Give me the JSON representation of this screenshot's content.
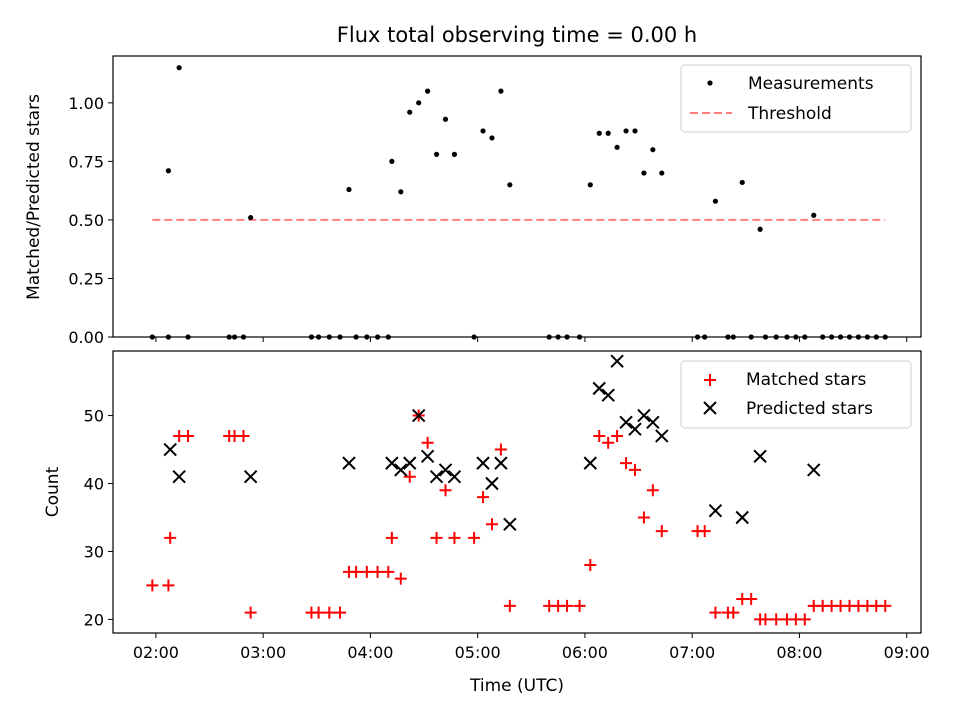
{
  "chart_data": [
    {
      "type": "scatter",
      "title": "Flux total observing time = 0.00 h",
      "ylabel": "Matched/Predicted stars",
      "xlim": [
        "01:36",
        "09:08"
      ],
      "ylim": [
        0,
        1.2
      ],
      "yticks": [
        "0.00",
        "0.25",
        "0.50",
        "0.75",
        "1.00"
      ],
      "legend_position": "top-right",
      "series": [
        {
          "name": "Measurements",
          "marker": "dot",
          "color": "#000000",
          "points": [
            [
              "01:58",
              0
            ],
            [
              "02:07",
              0
            ],
            [
              "02:07",
              0.71
            ],
            [
              "02:13",
              1.15
            ],
            [
              "02:18",
              0
            ],
            [
              "02:41",
              0
            ],
            [
              "02:44",
              0
            ],
            [
              "02:49",
              0
            ],
            [
              "02:53",
              0.51
            ],
            [
              "03:27",
              0
            ],
            [
              "03:31",
              0
            ],
            [
              "03:37",
              0
            ],
            [
              "03:43",
              0
            ],
            [
              "03:48",
              0.63
            ],
            [
              "03:52",
              0
            ],
            [
              "03:58",
              0
            ],
            [
              "04:04",
              0
            ],
            [
              "04:10",
              0
            ],
            [
              "04:12",
              0.75
            ],
            [
              "04:17",
              0.62
            ],
            [
              "04:22",
              0.96
            ],
            [
              "04:27",
              1.0
            ],
            [
              "04:32",
              1.05
            ],
            [
              "04:37",
              0.78
            ],
            [
              "04:42",
              0.93
            ],
            [
              "04:47",
              0.78
            ],
            [
              "04:58",
              0
            ],
            [
              "05:03",
              0.88
            ],
            [
              "05:08",
              0.85
            ],
            [
              "05:13",
              1.05
            ],
            [
              "05:18",
              0.65
            ],
            [
              "05:40",
              0
            ],
            [
              "05:45",
              0
            ],
            [
              "05:50",
              0
            ],
            [
              "05:57",
              0
            ],
            [
              "06:03",
              0.65
            ],
            [
              "06:08",
              0.87
            ],
            [
              "06:13",
              0.87
            ],
            [
              "06:18",
              0.81
            ],
            [
              "06:23",
              0.88
            ],
            [
              "06:28",
              0.88
            ],
            [
              "06:33",
              0.7
            ],
            [
              "06:38",
              0.8
            ],
            [
              "06:43",
              0.7
            ],
            [
              "07:03",
              0
            ],
            [
              "07:07",
              0
            ],
            [
              "07:13",
              0.58
            ],
            [
              "07:20",
              0
            ],
            [
              "07:23",
              0
            ],
            [
              "07:28",
              0.66
            ],
            [
              "07:33",
              0
            ],
            [
              "07:38",
              0.46
            ],
            [
              "07:41",
              0
            ],
            [
              "07:47",
              0
            ],
            [
              "07:53",
              0
            ],
            [
              "07:58",
              0
            ],
            [
              "08:03",
              0
            ],
            [
              "08:08",
              0.52
            ],
            [
              "08:13",
              0
            ],
            [
              "08:18",
              0
            ],
            [
              "08:23",
              0
            ],
            [
              "08:28",
              0
            ],
            [
              "08:33",
              0
            ],
            [
              "08:38",
              0
            ],
            [
              "08:43",
              0
            ],
            [
              "08:48",
              0
            ]
          ]
        },
        {
          "name": "Threshold",
          "marker": "dashed-line",
          "color": "#ff7f7f",
          "points": [
            [
              "01:58",
              0.5
            ],
            [
              "08:48",
              0.5
            ]
          ]
        }
      ]
    },
    {
      "type": "scatter",
      "xlabel": "Time (UTC)",
      "ylabel": "Count",
      "xlim": [
        "01:36",
        "09:08"
      ],
      "ylim": [
        18,
        59.5
      ],
      "xticks": [
        "02:00",
        "03:00",
        "04:00",
        "05:00",
        "06:00",
        "07:00",
        "08:00",
        "09:00"
      ],
      "yticks": [
        "20",
        "30",
        "40",
        "50"
      ],
      "legend_position": "top-right",
      "series": [
        {
          "name": "Matched stars",
          "marker": "plus",
          "color": "#ff0000",
          "points": [
            [
              "01:58",
              25
            ],
            [
              "02:07",
              25
            ],
            [
              "02:08",
              32
            ],
            [
              "02:13",
              47
            ],
            [
              "02:18",
              47
            ],
            [
              "02:41",
              47
            ],
            [
              "02:44",
              47
            ],
            [
              "02:49",
              47
            ],
            [
              "02:53",
              21
            ],
            [
              "03:27",
              21
            ],
            [
              "03:31",
              21
            ],
            [
              "03:37",
              21
            ],
            [
              "03:43",
              21
            ],
            [
              "03:48",
              27
            ],
            [
              "03:52",
              27
            ],
            [
              "03:58",
              27
            ],
            [
              "04:04",
              27
            ],
            [
              "04:10",
              27
            ],
            [
              "04:12",
              32
            ],
            [
              "04:17",
              26
            ],
            [
              "04:22",
              41
            ],
            [
              "04:27",
              50
            ],
            [
              "04:32",
              46
            ],
            [
              "04:37",
              32
            ],
            [
              "04:42",
              39
            ],
            [
              "04:47",
              32
            ],
            [
              "04:58",
              32
            ],
            [
              "05:03",
              38
            ],
            [
              "05:08",
              34
            ],
            [
              "05:13",
              45
            ],
            [
              "05:18",
              22
            ],
            [
              "05:40",
              22
            ],
            [
              "05:45",
              22
            ],
            [
              "05:50",
              22
            ],
            [
              "05:57",
              22
            ],
            [
              "06:03",
              28
            ],
            [
              "06:08",
              47
            ],
            [
              "06:13",
              46
            ],
            [
              "06:18",
              47
            ],
            [
              "06:23",
              43
            ],
            [
              "06:28",
              42
            ],
            [
              "06:33",
              35
            ],
            [
              "06:38",
              39
            ],
            [
              "06:43",
              33
            ],
            [
              "07:03",
              33
            ],
            [
              "07:07",
              33
            ],
            [
              "07:13",
              21
            ],
            [
              "07:20",
              21
            ],
            [
              "07:23",
              21
            ],
            [
              "07:28",
              23
            ],
            [
              "07:33",
              23
            ],
            [
              "07:38",
              20
            ],
            [
              "07:41",
              20
            ],
            [
              "07:47",
              20
            ],
            [
              "07:53",
              20
            ],
            [
              "07:58",
              20
            ],
            [
              "08:03",
              20
            ],
            [
              "08:08",
              22
            ],
            [
              "08:13",
              22
            ],
            [
              "08:18",
              22
            ],
            [
              "08:23",
              22
            ],
            [
              "08:28",
              22
            ],
            [
              "08:33",
              22
            ],
            [
              "08:38",
              22
            ],
            [
              "08:43",
              22
            ],
            [
              "08:48",
              22
            ]
          ]
        },
        {
          "name": "Predicted stars",
          "marker": "x",
          "color": "#000000",
          "points": [
            [
              "02:08",
              45
            ],
            [
              "02:13",
              41
            ],
            [
              "02:53",
              41
            ],
            [
              "03:48",
              43
            ],
            [
              "04:12",
              43
            ],
            [
              "04:17",
              42
            ],
            [
              "04:22",
              43
            ],
            [
              "04:27",
              50
            ],
            [
              "04:32",
              44
            ],
            [
              "04:37",
              41
            ],
            [
              "04:42",
              42
            ],
            [
              "04:47",
              41
            ],
            [
              "05:03",
              43
            ],
            [
              "05:08",
              40
            ],
            [
              "05:13",
              43
            ],
            [
              "05:18",
              34
            ],
            [
              "06:03",
              43
            ],
            [
              "06:08",
              54
            ],
            [
              "06:13",
              53
            ],
            [
              "06:18",
              58
            ],
            [
              "06:23",
              49
            ],
            [
              "06:28",
              48
            ],
            [
              "06:33",
              50
            ],
            [
              "06:38",
              49
            ],
            [
              "06:43",
              47
            ],
            [
              "07:13",
              36
            ],
            [
              "07:28",
              35
            ],
            [
              "07:38",
              44
            ],
            [
              "08:08",
              42
            ]
          ]
        }
      ]
    }
  ]
}
